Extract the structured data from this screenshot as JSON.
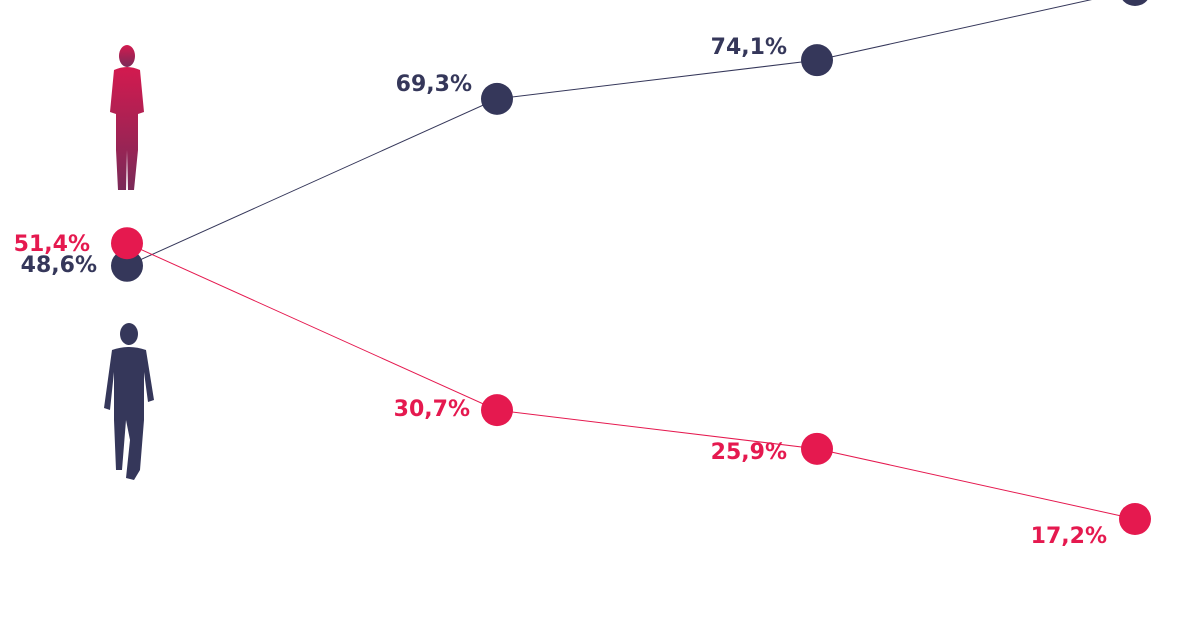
{
  "chart_data": {
    "type": "line",
    "series": [
      {
        "color": "#35375a",
        "values": [
          48.6,
          69.3,
          74.1,
          82.8
        ],
        "value_labels": [
          "48,6%",
          "69,3%",
          "74,1%",
          null
        ]
      },
      {
        "color": "#e5194f",
        "values": [
          51.4,
          30.7,
          25.9,
          17.2
        ],
        "value_labels": [
          "51,4%",
          "30,7%",
          "25,9%",
          "17,2%"
        ]
      }
    ]
  }
}
